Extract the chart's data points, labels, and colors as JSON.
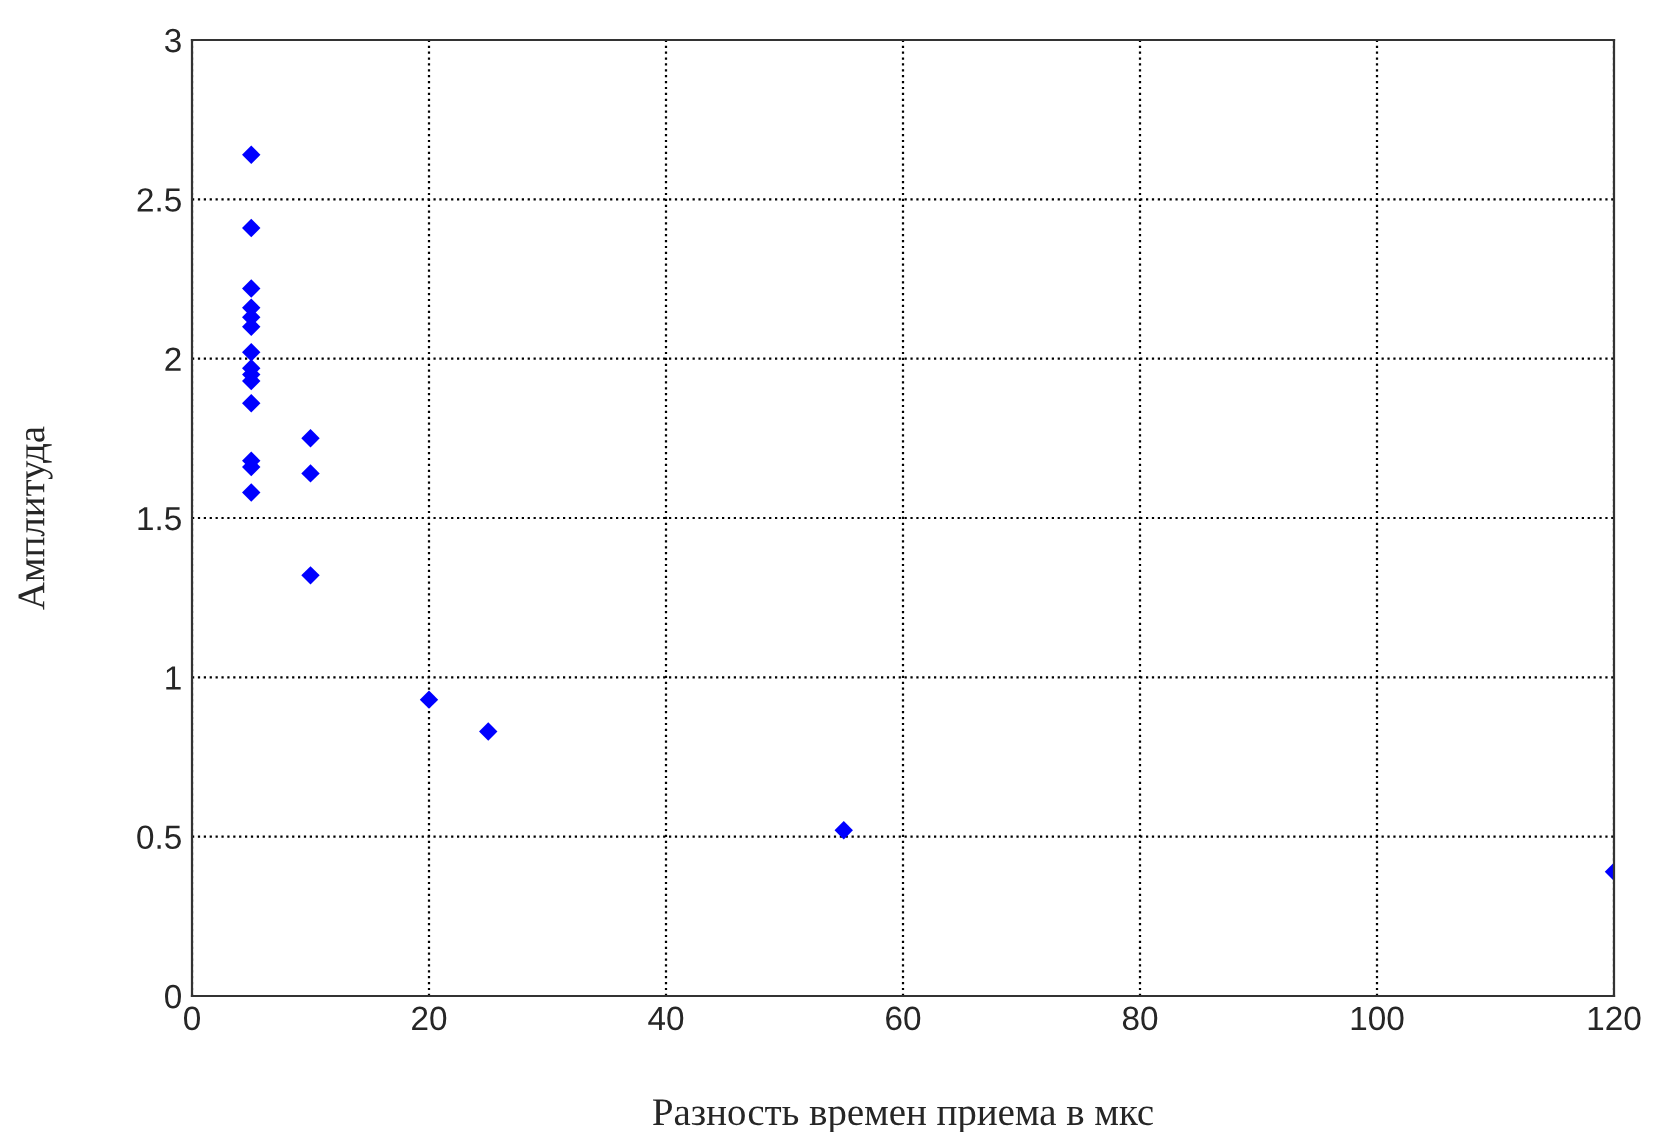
{
  "chart_data": {
    "type": "scatter",
    "xlabel": "Разность времен приема в мкс",
    "ylabel": "Амплитуда",
    "x": [
      5,
      5,
      5,
      5,
      5,
      5,
      5,
      5,
      5,
      5,
      5,
      5,
      5,
      5,
      10,
      10,
      10,
      20,
      25,
      55,
      120
    ],
    "values": [
      2.64,
      2.41,
      2.22,
      2.16,
      2.13,
      2.1,
      2.02,
      1.97,
      1.95,
      1.93,
      1.86,
      1.68,
      1.66,
      1.58,
      1.75,
      1.64,
      1.32,
      0.93,
      0.83,
      0.52,
      0.39
    ],
    "color": "#0000ff",
    "marker": "diamond",
    "line_style": "dotted",
    "xlim": [
      0,
      120
    ],
    "xticks": [
      0,
      20,
      40,
      60,
      80,
      100,
      120
    ],
    "ylim": [
      0,
      3
    ],
    "yticks": [
      0,
      0.5,
      1,
      1.5,
      2,
      2.5,
      3
    ],
    "grid": true
  }
}
